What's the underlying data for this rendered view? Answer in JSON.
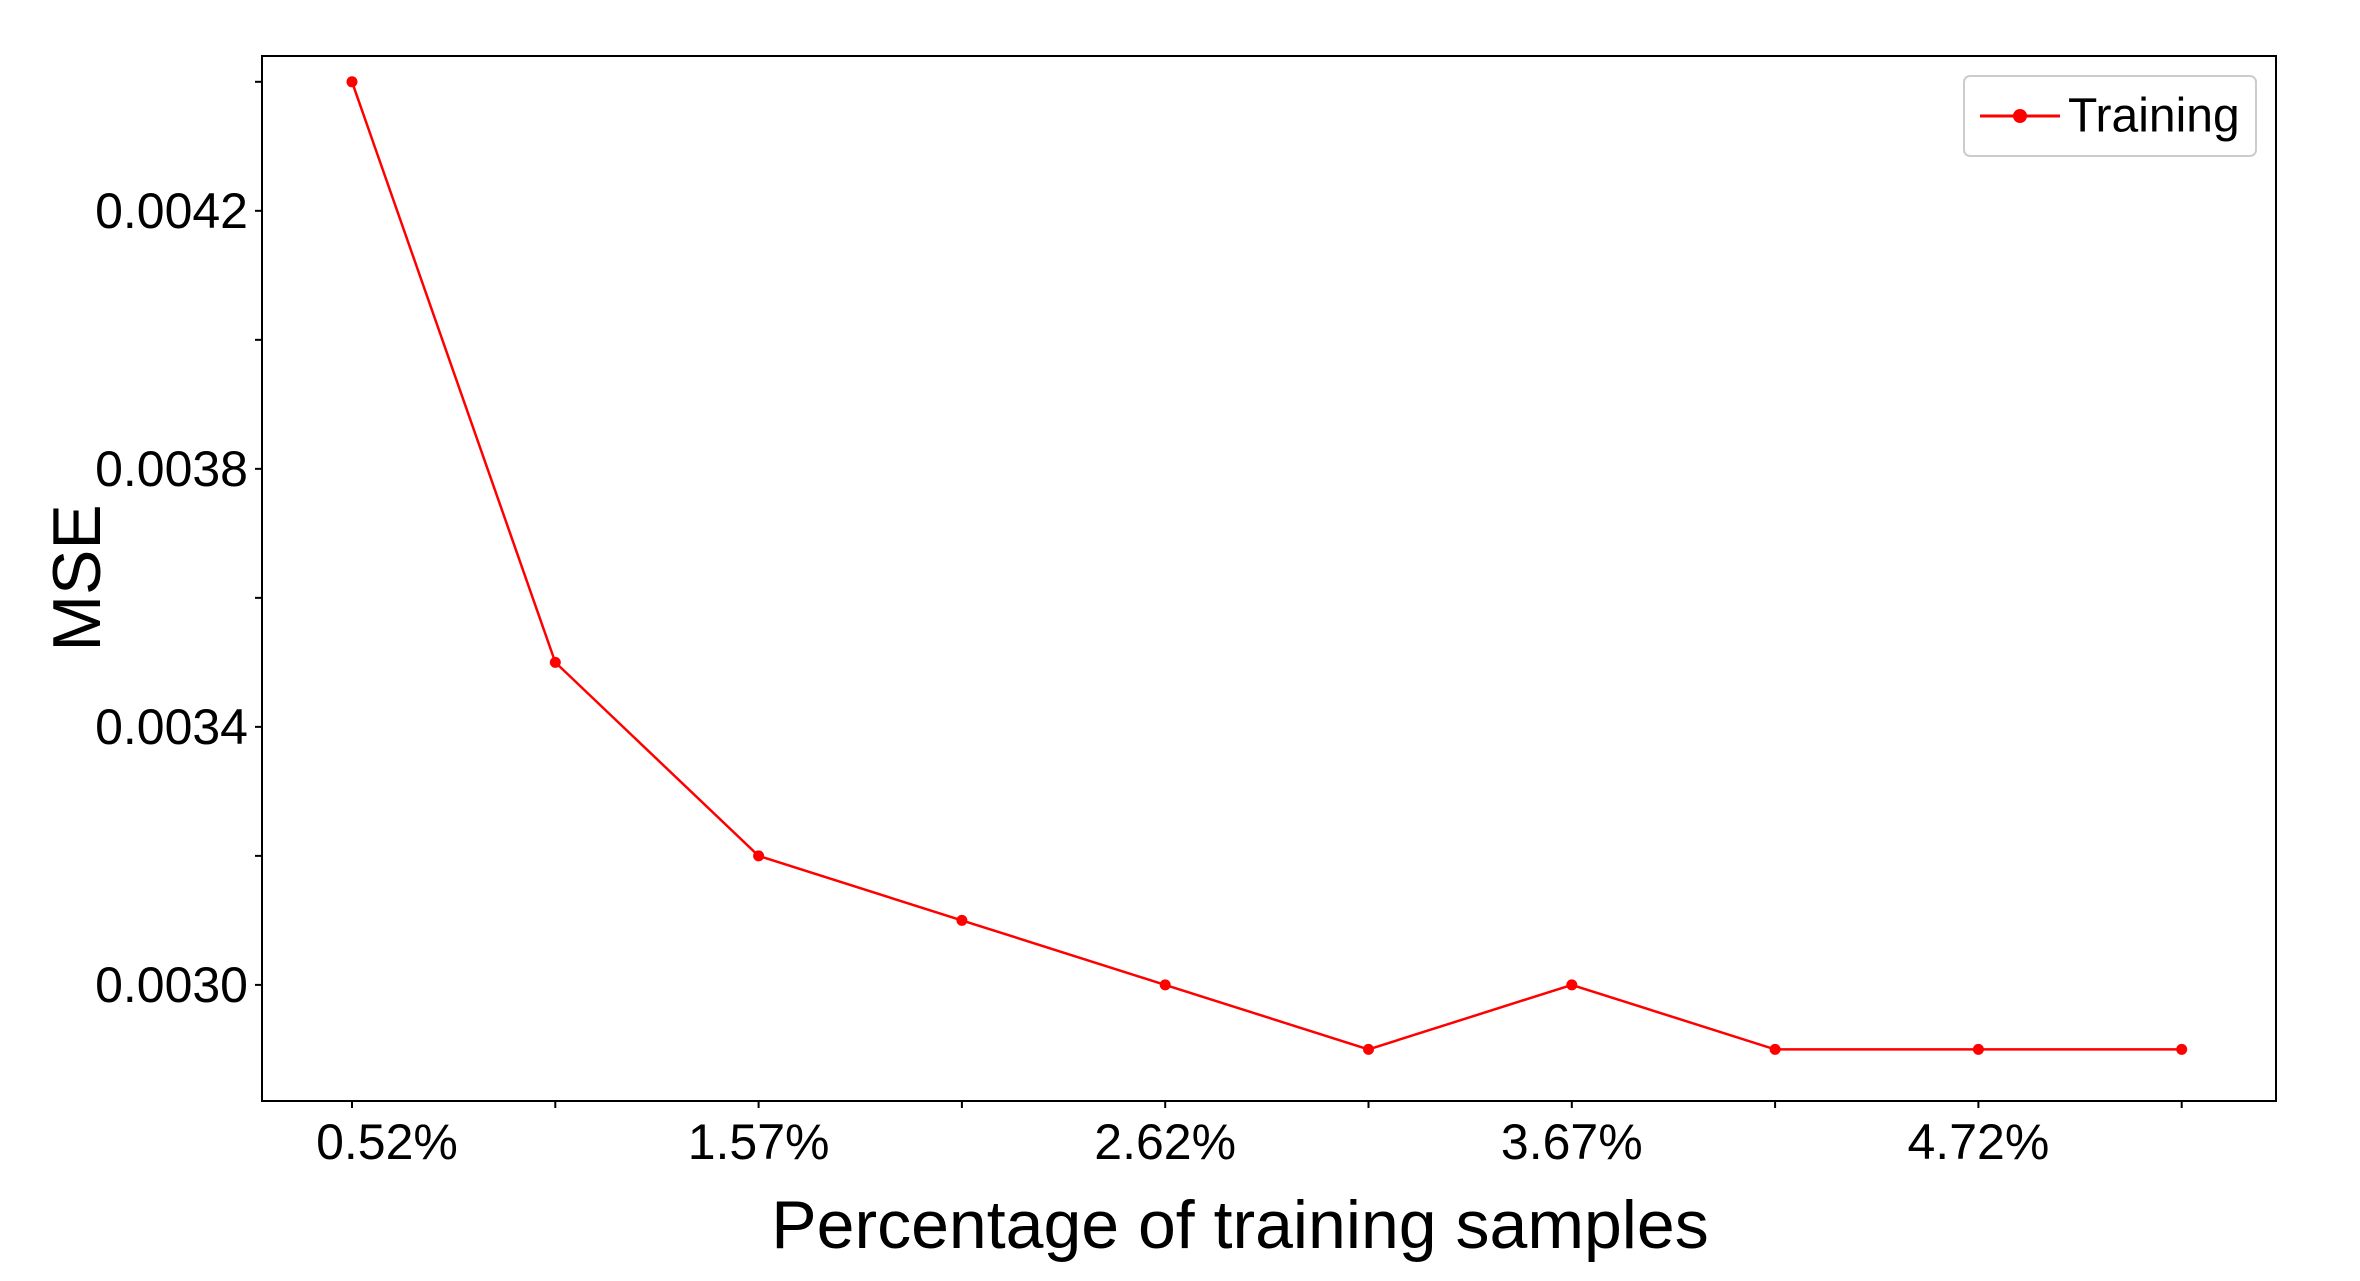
{
  "chart_data": {
    "type": "line",
    "title": "",
    "xlabel": "Percentage of training samples",
    "ylabel": "MSE",
    "categories": [
      "0.52%",
      "",
      "1.57%",
      "",
      "2.62%",
      "",
      "3.67%",
      "",
      "4.72%",
      ""
    ],
    "x_tick_labels": [
      "0.52%",
      "1.57%",
      "2.62%",
      "3.67%",
      "4.72%"
    ],
    "y_tick_labels": [
      "0.0042",
      "0.0038",
      "0.0034",
      "0.0030"
    ],
    "y_ticks": [
      0.0042,
      0.0038,
      0.0034,
      0.003
    ],
    "ylim": [
      0.00282,
      0.00444
    ],
    "grid": false,
    "legend_position": "top-right",
    "series": [
      {
        "name": "Training",
        "color": "#ff0000",
        "marker": "circle",
        "values": [
          0.0044,
          0.0035,
          0.0032,
          0.0031,
          0.003,
          0.0029,
          0.003,
          0.0029,
          0.0029,
          0.0029
        ]
      }
    ]
  }
}
